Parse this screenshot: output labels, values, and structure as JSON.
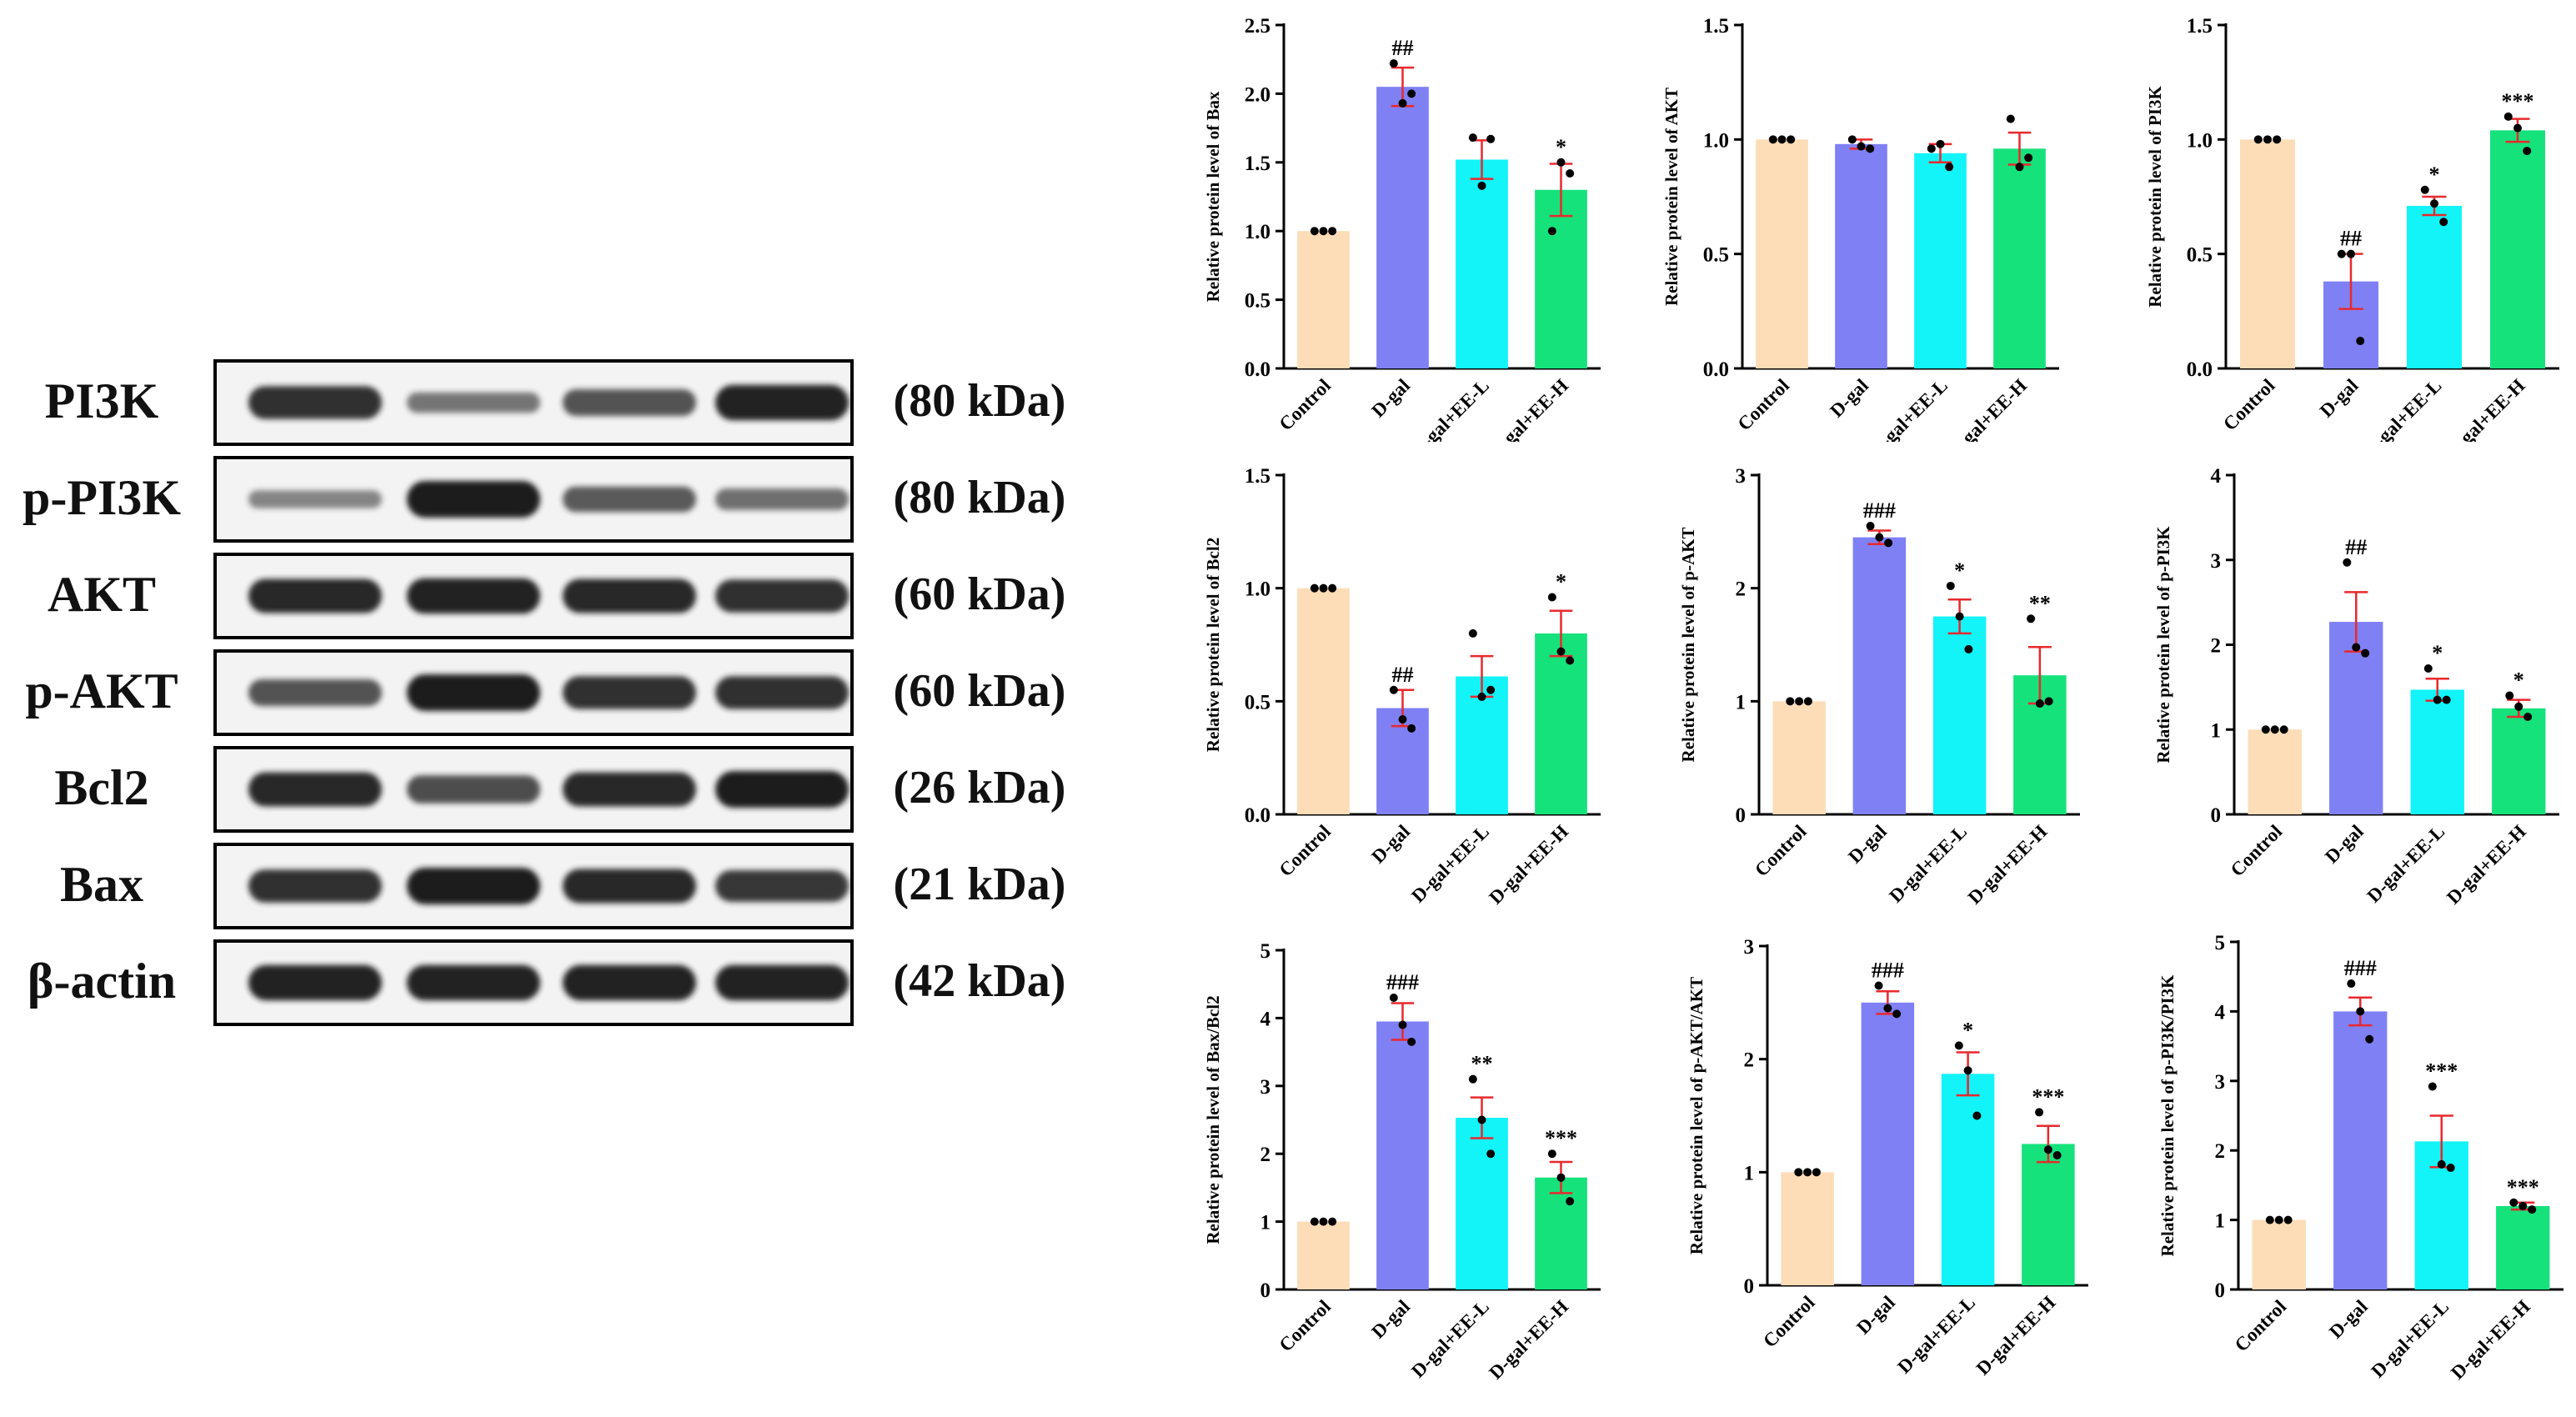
{
  "colors": {
    "groups": [
      "#FCDDB8",
      "#8080F5",
      "#12F4F8",
      "#16E27C"
    ],
    "error": "#E8292D",
    "points": "#000000",
    "blot_bg": "#f3f3f3",
    "band": "#1c1c1c"
  },
  "blot": {
    "rows": [
      {
        "label": "PI3K",
        "kda": "(80 kDa)",
        "intensity": [
          0.85,
          0.35,
          0.6,
          0.95
        ]
      },
      {
        "label": "p-PI3K",
        "kda": "(80 kDa)",
        "intensity": [
          0.25,
          1.0,
          0.55,
          0.4
        ]
      },
      {
        "label": "AKT",
        "kda": "(60 kDa)",
        "intensity": [
          0.9,
          0.95,
          0.9,
          0.85
        ]
      },
      {
        "label": "p-AKT",
        "kda": "(60 kDa)",
        "intensity": [
          0.6,
          1.0,
          0.85,
          0.85
        ]
      },
      {
        "label": "Bcl2",
        "kda": "(26 kDa)",
        "intensity": [
          0.9,
          0.65,
          0.9,
          1.0
        ]
      },
      {
        "label": "Bax",
        "kda": "(21 kDa)",
        "intensity": [
          0.85,
          1.0,
          0.9,
          0.8
        ]
      },
      {
        "label": "β-actin",
        "kda": "(42 kDa)",
        "intensity": [
          0.95,
          0.95,
          0.95,
          0.95
        ]
      }
    ]
  },
  "chart_data": [
    {
      "type": "bar",
      "ylabel": "Relative protein level of Bax",
      "categories": [
        "Control",
        "D-gal",
        "D-gal+EE-L",
        "D-gal+EE-H"
      ],
      "values": [
        1.0,
        2.05,
        1.52,
        1.3
      ],
      "errors": [
        0.0,
        0.14,
        0.14,
        0.19
      ],
      "points": [
        [
          1.0,
          1.0,
          1.0
        ],
        [
          2.22,
          1.93,
          2.0
        ],
        [
          1.68,
          1.33,
          1.67
        ],
        [
          1.0,
          1.5,
          1.42
        ]
      ],
      "sig": [
        "",
        "##",
        "",
        "*"
      ],
      "ylim": [
        0,
        2.5
      ],
      "yticks": [
        0.0,
        0.5,
        1.0,
        1.5,
        2.0,
        2.5
      ]
    },
    {
      "type": "bar",
      "ylabel": "Relative protein level of AKT",
      "categories": [
        "Control",
        "D-gal",
        "D-gal+EE-L",
        "D-gal+EE-H"
      ],
      "values": [
        1.0,
        0.98,
        0.94,
        0.96
      ],
      "errors": [
        0.0,
        0.02,
        0.04,
        0.07
      ],
      "points": [
        [
          1.0,
          1.0,
          1.0
        ],
        [
          1.0,
          0.97,
          0.96
        ],
        [
          0.96,
          0.98,
          0.88
        ],
        [
          1.09,
          0.88,
          0.92
        ]
      ],
      "sig": [
        "",
        "",
        "",
        ""
      ],
      "ylim": [
        0,
        1.5
      ],
      "yticks": [
        0.0,
        0.5,
        1.0,
        1.5
      ]
    },
    {
      "type": "bar",
      "ylabel": "Relative protein level of PI3K",
      "categories": [
        "Control",
        "D-gal",
        "D-gal+EE-L",
        "D-gal+EE-H"
      ],
      "values": [
        1.0,
        0.38,
        0.71,
        1.04
      ],
      "errors": [
        0.0,
        0.12,
        0.04,
        0.05
      ],
      "points": [
        [
          1.0,
          1.0,
          1.0
        ],
        [
          0.5,
          0.5,
          0.12
        ],
        [
          0.78,
          0.72,
          0.64
        ],
        [
          1.1,
          1.05,
          0.95
        ]
      ],
      "sig": [
        "",
        "##",
        "*",
        "***"
      ],
      "ylim": [
        0,
        1.5
      ],
      "yticks": [
        0.0,
        0.5,
        1.0,
        1.5
      ]
    },
    {
      "type": "bar",
      "ylabel": "Relative protein level of Bcl2",
      "categories": [
        "Control",
        "D-gal",
        "D-gal+EE-L",
        "D-gal+EE-H"
      ],
      "values": [
        1.0,
        0.47,
        0.61,
        0.8
      ],
      "errors": [
        0.0,
        0.08,
        0.09,
        0.1
      ],
      "points": [
        [
          1.0,
          1.0,
          1.0
        ],
        [
          0.55,
          0.42,
          0.38
        ],
        [
          0.8,
          0.52,
          0.55
        ],
        [
          0.96,
          0.72,
          0.68
        ]
      ],
      "sig": [
        "",
        "##",
        "",
        "*"
      ],
      "ylim": [
        0,
        1.5
      ],
      "yticks": [
        0.0,
        0.5,
        1.0,
        1.5
      ]
    },
    {
      "type": "bar",
      "ylabel": "Relative protein level of p-AKT",
      "categories": [
        "Control",
        "D-gal",
        "D-gal+EE-L",
        "D-gal+EE-H"
      ],
      "values": [
        1.0,
        2.45,
        1.75,
        1.23
      ],
      "errors": [
        0.0,
        0.06,
        0.15,
        0.25
      ],
      "points": [
        [
          1.0,
          1.0,
          1.0
        ],
        [
          2.55,
          2.45,
          2.4
        ],
        [
          2.02,
          1.75,
          1.46
        ],
        [
          1.73,
          0.98,
          1.0
        ]
      ],
      "sig": [
        "",
        "###",
        "*",
        "**"
      ],
      "ylim": [
        0,
        3
      ],
      "yticks": [
        0,
        1,
        2,
        3
      ]
    },
    {
      "type": "bar",
      "ylabel": "Relative protein level of p-PI3K",
      "categories": [
        "Control",
        "D-gal",
        "D-gal+EE-L",
        "D-gal+EE-H"
      ],
      "values": [
        1.0,
        2.27,
        1.47,
        1.25
      ],
      "errors": [
        0.0,
        0.35,
        0.13,
        0.1
      ],
      "points": [
        [
          1.0,
          1.0,
          1.0
        ],
        [
          2.97,
          1.97,
          1.9
        ],
        [
          1.72,
          1.35,
          1.35
        ],
        [
          1.4,
          1.27,
          1.15
        ]
      ],
      "sig": [
        "",
        "##",
        "*",
        "*"
      ],
      "ylim": [
        0,
        4
      ],
      "yticks": [
        0,
        1,
        2,
        3,
        4
      ]
    },
    {
      "type": "bar",
      "ylabel": "Relative protein level of Bax/Bcl2",
      "categories": [
        "Control",
        "D-gal",
        "D-gal+EE-L",
        "D-gal+EE-H"
      ],
      "values": [
        1.0,
        3.95,
        2.53,
        1.65
      ],
      "errors": [
        0.0,
        0.27,
        0.3,
        0.23
      ],
      "points": [
        [
          1.0,
          1.0,
          1.0
        ],
        [
          4.3,
          3.9,
          3.65
        ],
        [
          3.1,
          2.5,
          2.0
        ],
        [
          2.0,
          1.65,
          1.3
        ]
      ],
      "sig": [
        "",
        "###",
        "**",
        "***"
      ],
      "ylim": [
        0,
        5
      ],
      "yticks": [
        0,
        1,
        2,
        3,
        4,
        5
      ]
    },
    {
      "type": "bar",
      "ylabel": "Relative protein level of p-AKT/AKT",
      "categories": [
        "Control",
        "D-gal",
        "D-gal+EE-L",
        "D-gal+EE-H"
      ],
      "values": [
        1.0,
        2.5,
        1.87,
        1.25
      ],
      "errors": [
        0.0,
        0.1,
        0.19,
        0.16
      ],
      "points": [
        [
          1.0,
          1.0,
          1.0
        ],
        [
          2.65,
          2.45,
          2.4
        ],
        [
          2.12,
          1.9,
          1.5
        ],
        [
          1.53,
          1.2,
          1.15
        ]
      ],
      "sig": [
        "",
        "###",
        "*",
        "***"
      ],
      "ylim": [
        0,
        3
      ],
      "yticks": [
        0,
        1,
        2,
        3
      ]
    },
    {
      "type": "bar",
      "ylabel": "Relative protein level of p-PI3K/PI3K",
      "categories": [
        "Control",
        "D-gal",
        "D-gal+EE-L",
        "D-gal+EE-H"
      ],
      "values": [
        1.0,
        4.0,
        2.13,
        1.2
      ],
      "errors": [
        0.0,
        0.2,
        0.37,
        0.05
      ],
      "points": [
        [
          1.0,
          1.0,
          1.0
        ],
        [
          4.4,
          4.0,
          3.6
        ],
        [
          2.92,
          1.8,
          1.75
        ],
        [
          1.25,
          1.2,
          1.15
        ]
      ],
      "sig": [
        "",
        "###",
        "***",
        "***"
      ],
      "ylim": [
        0,
        5
      ],
      "yticks": [
        0,
        1,
        2,
        3,
        4,
        5
      ]
    }
  ]
}
